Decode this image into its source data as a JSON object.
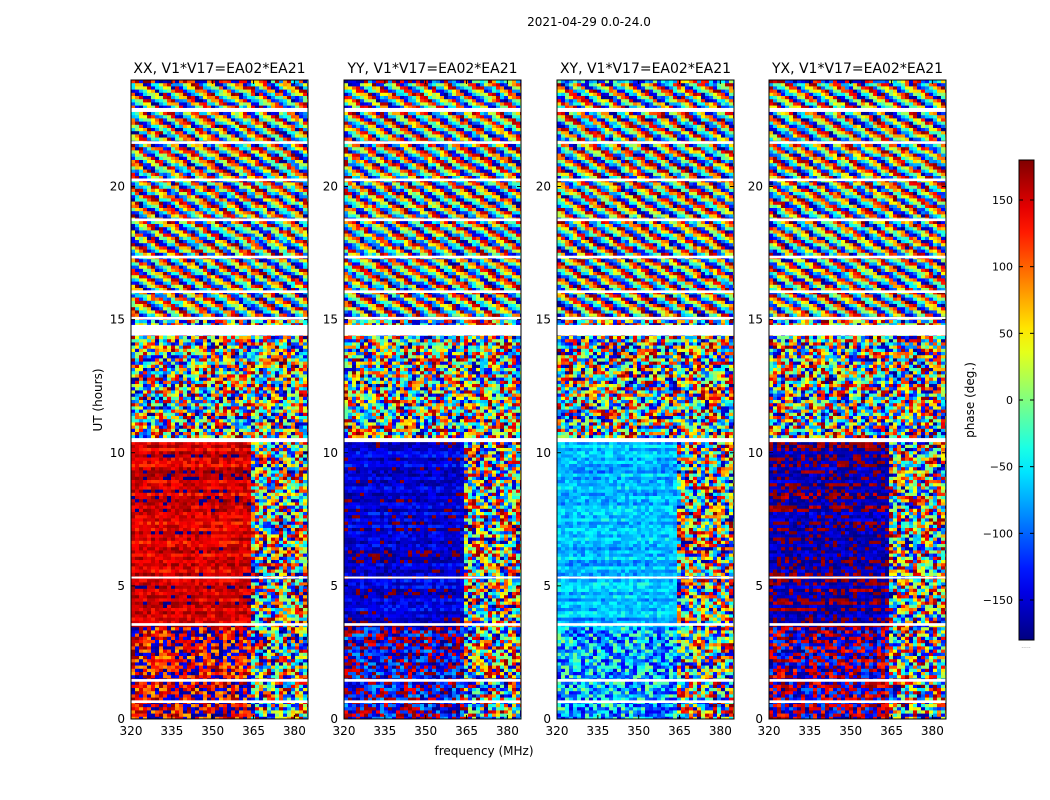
{
  "figure_title": "2021-04-29 0.0-24.0",
  "xlabel": "frequency (MHz)",
  "ylabel": "UT (hours)",
  "colorbar": {
    "label": "phase (deg.)",
    "vmin": -180,
    "vmax": 180,
    "ticks": [
      150,
      100,
      50,
      0,
      -50,
      -100,
      -150
    ],
    "tick_labels": [
      "150",
      "100",
      "50",
      "0",
      "−50",
      "−100",
      "−150"
    ],
    "footnote": "....."
  },
  "colors": {
    "flagged": "#ffffff",
    "cmap": [
      "#000080",
      "#0000ff",
      "#00ffff",
      "#ffff00",
      "#ff0000",
      "#800000"
    ]
  },
  "chart_data": {
    "type": "heatmap",
    "description_values": "phase vs frequency and UT time, one panel per correlation product",
    "xlim": [
      320,
      385
    ],
    "ylim": [
      0,
      24
    ],
    "x_ticks": [
      320,
      335,
      350,
      365,
      380
    ],
    "x_tick_labels": [
      "320",
      "335",
      "350",
      "365",
      "380"
    ],
    "y_ticks": [
      0,
      5,
      10,
      15,
      20
    ],
    "y_tick_labels": [
      "0",
      "5",
      "10",
      "15",
      "20"
    ],
    "panels": [
      {
        "title": "XX, V1*V17=EA02*EA21",
        "base_phase_low": 150,
        "base_phase_high": 160
      },
      {
        "title": "YY, V1*V17=EA02*EA21",
        "base_phase_low": -150,
        "base_phase_high": 170
      },
      {
        "title": "XY, V1*V17=EA02*EA21",
        "base_phase_low": -70,
        "base_phase_high": -60
      },
      {
        "title": "YX, V1*V17=EA02*EA21",
        "base_phase_low": -170,
        "base_phase_high": 160
      }
    ],
    "time_segments_hours": [
      {
        "from": 0.0,
        "to": 3.5,
        "character": "calibrated, partly noisy"
      },
      {
        "from": 3.5,
        "to": 10.5,
        "character": "coherent phase"
      },
      {
        "from": 10.5,
        "to": 15.0,
        "character": "noisy"
      },
      {
        "from": 15.0,
        "to": 24.0,
        "character": "wrapped phase fringes"
      }
    ],
    "flagged_time_bands_hours": [
      [
        0.6,
        0.7
      ],
      [
        1.4,
        1.5
      ],
      [
        3.5,
        3.6
      ],
      [
        5.3,
        5.35
      ],
      [
        10.4,
        10.55
      ],
      [
        14.4,
        14.8
      ],
      [
        15.0,
        15.1
      ],
      [
        16.0,
        16.1
      ],
      [
        17.3,
        17.4
      ],
      [
        18.7,
        18.8
      ],
      [
        20.2,
        20.3
      ],
      [
        21.6,
        21.7
      ],
      [
        22.8,
        22.95
      ]
    ],
    "rfi_frequency_mhz": 363
  }
}
